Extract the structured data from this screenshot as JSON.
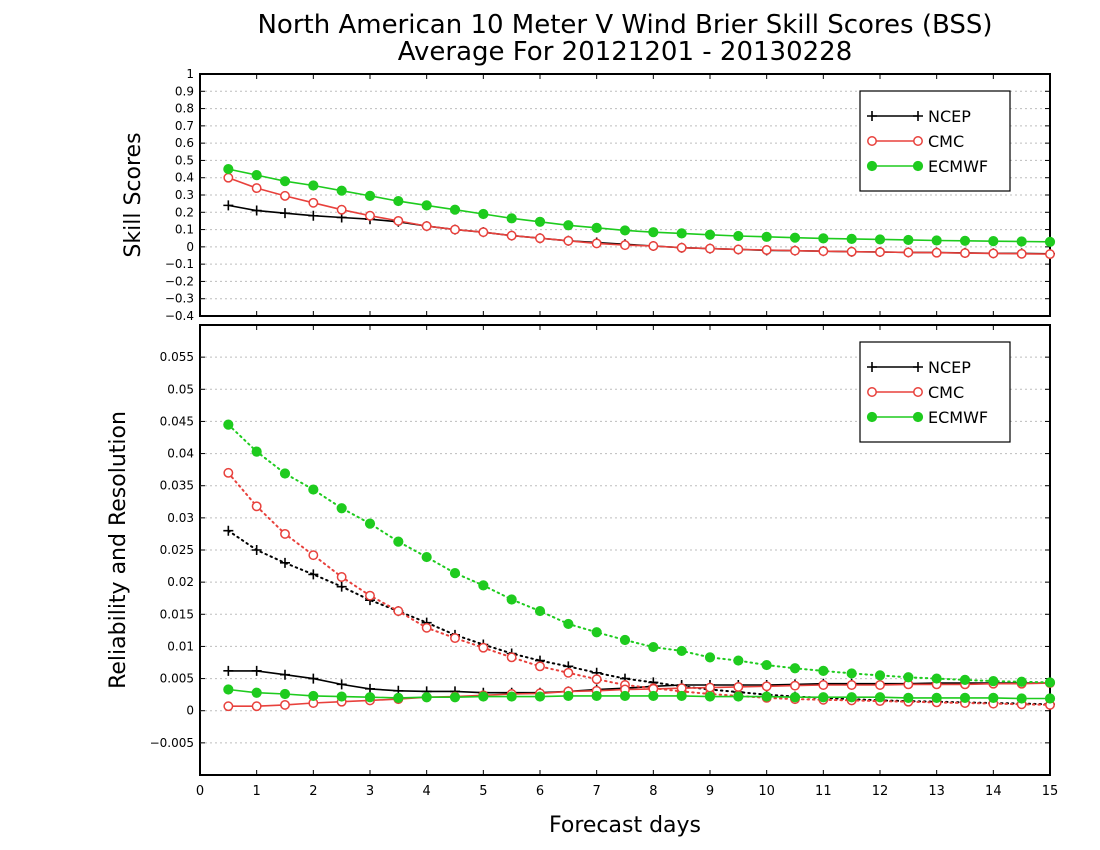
{
  "chart_data": {
    "type": "line",
    "title": "North American 10 Meter V Wind Brier Skill Scores (BSS)",
    "subtitle": "Average For 20121201 - 20130228",
    "xlabel": "Forecast days",
    "xlim": [
      0,
      15
    ],
    "x_ticks": [
      "0",
      "1",
      "2",
      "3",
      "4",
      "5",
      "6",
      "7",
      "8",
      "9",
      "10",
      "11",
      "12",
      "13",
      "14",
      "15"
    ],
    "colors": {
      "NCEP": "#000000",
      "CMC": "#e8413c",
      "ECMWF": "#1ecb1e"
    },
    "x": [
      0.5,
      1,
      1.5,
      2,
      2.5,
      3,
      3.5,
      4,
      4.5,
      5,
      5.5,
      6,
      6.5,
      7,
      7.5,
      8,
      8.5,
      9,
      9.5,
      10,
      10.5,
      11,
      11.5,
      12,
      12.5,
      13,
      13.5,
      14,
      14.5,
      15
    ],
    "panels": [
      {
        "ylabel": "Skill Scores",
        "ylim": [
          -0.4,
          1
        ],
        "y_ticks": [
          "−0.4",
          "−0.3",
          "−0.2",
          "−0.1",
          "0",
          "0.1",
          "0.2",
          "0.3",
          "0.4",
          "0.5",
          "0.6",
          "0.7",
          "0.8",
          "0.9",
          "1"
        ],
        "grid": true,
        "legend": {
          "position": "top-right",
          "entries": [
            "NCEP",
            "CMC",
            "ECMWF"
          ]
        },
        "series": [
          {
            "name": "NCEP",
            "marker": "plus",
            "line": "solid",
            "values": [
              0.24,
              0.21,
              0.195,
              0.18,
              0.17,
              0.16,
              0.145,
              0.12,
              0.1,
              0.085,
              0.065,
              0.05,
              0.035,
              0.025,
              0.015,
              0.005,
              -0.005,
              -0.01,
              -0.015,
              -0.02,
              -0.022,
              -0.025,
              -0.028,
              -0.03,
              -0.032,
              -0.033,
              -0.035,
              -0.037,
              -0.038,
              -0.04
            ]
          },
          {
            "name": "CMC",
            "marker": "open-circle",
            "line": "solid",
            "values": [
              0.4,
              0.34,
              0.295,
              0.255,
              0.215,
              0.18,
              0.15,
              0.12,
              0.1,
              0.085,
              0.065,
              0.05,
              0.035,
              0.02,
              0.01,
              0.005,
              -0.005,
              -0.01,
              -0.015,
              -0.018,
              -0.022,
              -0.025,
              -0.028,
              -0.03,
              -0.032,
              -0.034,
              -0.036,
              -0.038,
              -0.04,
              -0.042
            ]
          },
          {
            "name": "ECMWF",
            "marker": "filled-circle",
            "line": "solid",
            "values": [
              0.45,
              0.415,
              0.38,
              0.355,
              0.325,
              0.295,
              0.265,
              0.24,
              0.215,
              0.19,
              0.165,
              0.145,
              0.125,
              0.11,
              0.095,
              0.085,
              0.078,
              0.07,
              0.063,
              0.058,
              0.053,
              0.049,
              0.046,
              0.043,
              0.04,
              0.037,
              0.035,
              0.033,
              0.031,
              0.029
            ]
          }
        ]
      },
      {
        "ylabel": "Reliability and Resolution",
        "ylim": [
          -0.01,
          0.06
        ],
        "y_ticks": [
          "−0.005",
          "0",
          "0.005",
          "0.01",
          "0.015",
          "0.02",
          "0.025",
          "0.03",
          "0.035",
          "0.04",
          "0.045",
          "0.05",
          "0.055"
        ],
        "grid": true,
        "legend": {
          "position": "top-right",
          "entries": [
            "NCEP",
            "CMC",
            "ECMWF"
          ]
        },
        "series": [
          {
            "name": "NCEP",
            "marker": "plus",
            "line": "dotted",
            "values": [
              0.028,
              0.025,
              0.023,
              0.0212,
              0.0193,
              0.0172,
              0.0155,
              0.0137,
              0.0118,
              0.0103,
              0.0089,
              0.0078,
              0.0069,
              0.0059,
              0.005,
              0.0044,
              0.0038,
              0.0033,
              0.0029,
              0.0025,
              0.0022,
              0.002,
              0.0018,
              0.0016,
              0.0015,
              0.0014,
              0.0013,
              0.0012,
              0.0011,
              0.001
            ]
          },
          {
            "name": "NCEP",
            "marker": "plus",
            "line": "solid",
            "values": [
              0.0062,
              0.0062,
              0.0056,
              0.005,
              0.0041,
              0.0034,
              0.0031,
              0.003,
              0.003,
              0.0028,
              0.0028,
              0.0028,
              0.003,
              0.0033,
              0.0035,
              0.0038,
              0.004,
              0.004,
              0.004,
              0.004,
              0.0041,
              0.0042,
              0.0042,
              0.0042,
              0.0042,
              0.0043,
              0.0043,
              0.0043,
              0.0043,
              0.0043
            ]
          },
          {
            "name": "CMC",
            "marker": "open-circle",
            "line": "dotted",
            "values": [
              0.037,
              0.0318,
              0.0275,
              0.0242,
              0.0208,
              0.0179,
              0.0155,
              0.0129,
              0.0113,
              0.0098,
              0.0083,
              0.0069,
              0.0059,
              0.0049,
              0.004,
              0.0035,
              0.003,
              0.0026,
              0.0023,
              0.002,
              0.0018,
              0.0017,
              0.0016,
              0.0015,
              0.0014,
              0.0013,
              0.0012,
              0.0011,
              0.001,
              0.0009
            ]
          },
          {
            "name": "CMC",
            "marker": "open-circle",
            "line": "solid",
            "values": [
              0.0007,
              0.0007,
              0.0009,
              0.0012,
              0.0014,
              0.0016,
              0.0018,
              0.0021,
              0.0022,
              0.0024,
              0.0026,
              0.0027,
              0.003,
              0.0031,
              0.0033,
              0.0034,
              0.0035,
              0.0036,
              0.0037,
              0.0038,
              0.0039,
              0.004,
              0.004,
              0.004,
              0.0041,
              0.0041,
              0.0041,
              0.0042,
              0.0042,
              0.0043
            ]
          },
          {
            "name": "ECMWF",
            "marker": "filled-circle",
            "line": "dotted",
            "values": [
              0.0445,
              0.0403,
              0.0369,
              0.0344,
              0.0315,
              0.0291,
              0.0263,
              0.0239,
              0.0214,
              0.0195,
              0.0173,
              0.0155,
              0.0135,
              0.0122,
              0.011,
              0.0099,
              0.0093,
              0.0083,
              0.0078,
              0.0071,
              0.0066,
              0.0062,
              0.0058,
              0.0055,
              0.0052,
              0.005,
              0.0048,
              0.0046,
              0.0045,
              0.0044
            ]
          },
          {
            "name": "ECMWF",
            "marker": "filled-circle",
            "line": "solid",
            "values": [
              0.0033,
              0.0028,
              0.0026,
              0.0023,
              0.0022,
              0.0021,
              0.002,
              0.0021,
              0.0021,
              0.0022,
              0.0022,
              0.0022,
              0.0023,
              0.0023,
              0.0023,
              0.0023,
              0.0023,
              0.0022,
              0.0022,
              0.0022,
              0.0021,
              0.0021,
              0.0021,
              0.0021,
              0.002,
              0.002,
              0.002,
              0.002,
              0.0019,
              0.0019
            ]
          }
        ]
      }
    ]
  }
}
